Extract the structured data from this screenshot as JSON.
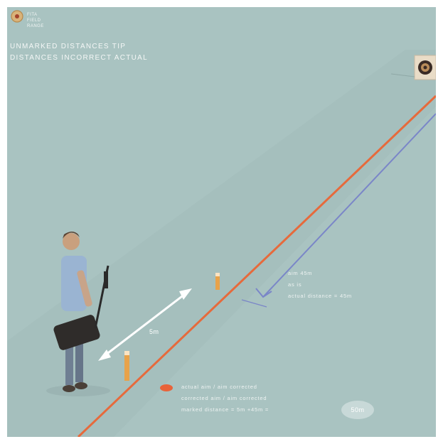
{
  "logo": {
    "line1": "FITA",
    "line2": "FIELD",
    "line3": "RANGE"
  },
  "title": {
    "line1": "UNMARKED DISTANCES TIP",
    "line2": "DISTANCES INCORRECT ACTUAL"
  },
  "shot_annotation": {
    "line1": "aim 45m",
    "line2": "as is",
    "line3": "actual distance = 45m"
  },
  "measure_label": "5m",
  "ground_annotation": {
    "line1": "actual aim / aim corrected",
    "line2": "corrected aim / aim corrected",
    "line3": "marked distance = 5m +45m ="
  },
  "badge_text": "50m",
  "colors": {
    "background": "#a9c3c1",
    "actual_line": "#e66a3c",
    "aim_line": "#7a86c8",
    "measure_arrow": "#ffffff",
    "stake": "#e8a24a",
    "ground_marker": "#e8633a"
  },
  "icons": {
    "logo": "fita-logo-icon",
    "target": "archery-target-icon",
    "archer": "archer-figure-icon",
    "stake": "distance-stake-icon",
    "marker": "ground-marker-icon"
  }
}
